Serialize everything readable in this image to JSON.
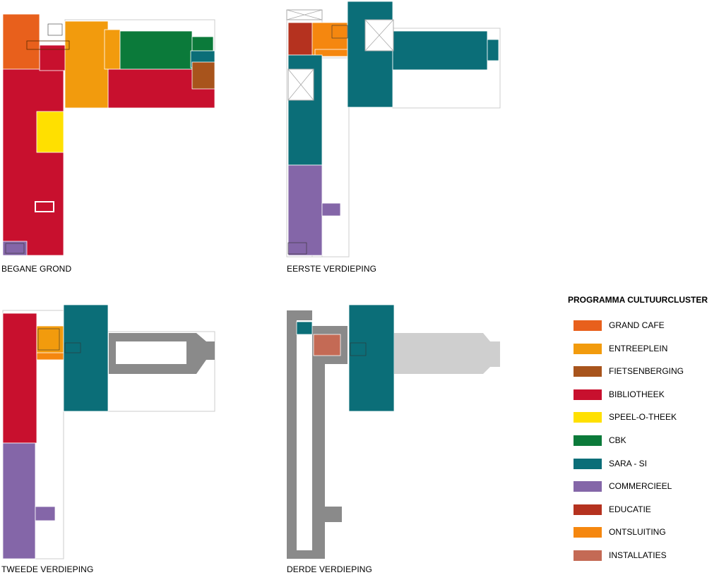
{
  "floors": [
    {
      "key": "begane",
      "label": "BEGANE GROND"
    },
    {
      "key": "eerste",
      "label": "EERSTE VERDIEPING"
    },
    {
      "key": "tweede",
      "label": "TWEEDE VERDIEPING"
    },
    {
      "key": "derde",
      "label": "DERDE VERDIEPING"
    }
  ],
  "legend": {
    "title": "PROGRAMMA CULTUURCLUSTER",
    "items": [
      {
        "key": "grand_cafe",
        "label": "GRAND CAFE",
        "color": "#E8601C"
      },
      {
        "key": "entreeplein",
        "label": "ENTREEPLEIN",
        "color": "#F29B0D"
      },
      {
        "key": "fietsenberging",
        "label": "FIETSENBERGING",
        "color": "#A8541C"
      },
      {
        "key": "bibliotheek",
        "label": "BIBLIOTHEEK",
        "color": "#C8102E"
      },
      {
        "key": "speel_o_theek",
        "label": "SPEEL-O-THEEK",
        "color": "#FFE000"
      },
      {
        "key": "cbk",
        "label": "CBK",
        "color": "#0B7A3A"
      },
      {
        "key": "sara_si",
        "label": "SARA - SI",
        "color": "#0B6E78"
      },
      {
        "key": "commercieel",
        "label": "COMMERCIEEL",
        "color": "#8466A8"
      },
      {
        "key": "educatie",
        "label": "EDUCATIE",
        "color": "#B5321F"
      },
      {
        "key": "ontsluiting",
        "label": "ONTSLUITING",
        "color": "#F5870F"
      },
      {
        "key": "installaties",
        "label": "INSTALLATIES",
        "color": "#C46A55"
      }
    ]
  }
}
